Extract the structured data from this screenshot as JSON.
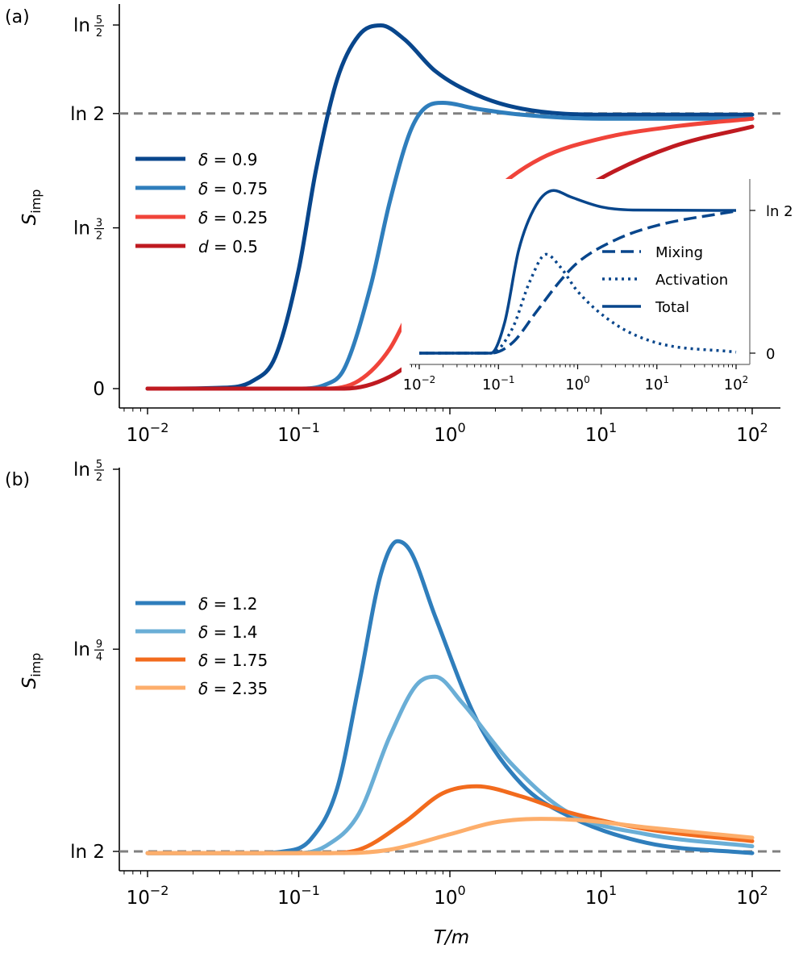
{
  "chart_data": [
    {
      "type": "line",
      "panel_label": "(a)",
      "xscale": "log",
      "xlim": [
        0.01,
        100
      ],
      "x_ticks": [
        {
          "base": "10",
          "exp": "−2",
          "value": 0.01
        },
        {
          "base": "10",
          "exp": "−1",
          "value": 0.1
        },
        {
          "base": "10",
          "exp": "0",
          "value": 1
        },
        {
          "base": "10",
          "exp": "1",
          "value": 10
        },
        {
          "base": "10",
          "exp": "2",
          "value": 100
        }
      ],
      "ylabel": {
        "main": "S",
        "sub": "imp"
      },
      "ylim": [
        0,
        0.916
      ],
      "y_ticks": [
        {
          "label": "0",
          "value": 0
        },
        {
          "label": "ln",
          "num": "3",
          "den": "2",
          "value": 0.405
        },
        {
          "label": "ln 2",
          "value": 0.693
        },
        {
          "label": "ln",
          "num": "5",
          "den": "2",
          "value": 0.916
        }
      ],
      "reference_line": {
        "value": 0.693,
        "style": "dashed",
        "color": "#808080"
      },
      "legend_position": "center-left",
      "series": [
        {
          "name_sym": "δ",
          "name_val": "= 0.9",
          "color": "#08468c",
          "points": [
            [
              0.01,
              0
            ],
            [
              0.03,
              0.002
            ],
            [
              0.05,
              0.02
            ],
            [
              0.07,
              0.08
            ],
            [
              0.1,
              0.3
            ],
            [
              0.13,
              0.55
            ],
            [
              0.18,
              0.78
            ],
            [
              0.25,
              0.89
            ],
            [
              0.35,
              0.915
            ],
            [
              0.5,
              0.88
            ],
            [
              0.8,
              0.8
            ],
            [
              1.5,
              0.74
            ],
            [
              3,
              0.705
            ],
            [
              10,
              0.69
            ],
            [
              100,
              0.69
            ]
          ]
        },
        {
          "name_sym": "δ",
          "name_val": "= 0.75",
          "color": "#2f7ebc",
          "points": [
            [
              0.01,
              0
            ],
            [
              0.1,
              0
            ],
            [
              0.15,
              0.01
            ],
            [
              0.2,
              0.05
            ],
            [
              0.3,
              0.26
            ],
            [
              0.4,
              0.47
            ],
            [
              0.55,
              0.65
            ],
            [
              0.7,
              0.71
            ],
            [
              0.9,
              0.72
            ],
            [
              1.5,
              0.705
            ],
            [
              3,
              0.69
            ],
            [
              10,
              0.68
            ],
            [
              100,
              0.68
            ]
          ]
        },
        {
          "name_sym": "δ",
          "name_val": "= 0.25",
          "color": "#f0443a",
          "points": [
            [
              0.01,
              0
            ],
            [
              0.15,
              0
            ],
            [
              0.25,
              0.02
            ],
            [
              0.4,
              0.1
            ],
            [
              0.6,
              0.23
            ],
            [
              1,
              0.37
            ],
            [
              2,
              0.5
            ],
            [
              4,
              0.58
            ],
            [
              10,
              0.63
            ],
            [
              30,
              0.66
            ],
            [
              100,
              0.68
            ]
          ]
        },
        {
          "name_sym": "d",
          "name_val": "= 0.5",
          "color": "#bf1a20",
          "points": [
            [
              0.01,
              0
            ],
            [
              0.2,
              0
            ],
            [
              0.4,
              0.03
            ],
            [
              0.7,
              0.1
            ],
            [
              1,
              0.17
            ],
            [
              2,
              0.31
            ],
            [
              4,
              0.43
            ],
            [
              10,
              0.53
            ],
            [
              30,
              0.61
            ],
            [
              100,
              0.66
            ]
          ]
        }
      ],
      "inset": {
        "type": "line",
        "xscale": "log",
        "xlim": [
          0.01,
          100
        ],
        "x_ticks": [
          {
            "base": "10",
            "exp": "−2",
            "value": 0.01
          },
          {
            "base": "10",
            "exp": "−1",
            "value": 0.1
          },
          {
            "base": "10",
            "exp": "0",
            "value": 1
          },
          {
            "base": "10",
            "exp": "1",
            "value": 10
          },
          {
            "base": "10",
            "exp": "2",
            "value": 100
          }
        ],
        "y_ticks": [
          {
            "label": "0",
            "value": 0
          },
          {
            "label": "ln 2",
            "value": 0.693
          }
        ],
        "legend_position": "right",
        "series": [
          {
            "name": "Mixing",
            "style": "dashed",
            "color": "#08468c",
            "points": [
              [
                0.01,
                0
              ],
              [
                0.08,
                0
              ],
              [
                0.15,
                0.05
              ],
              [
                0.3,
                0.2
              ],
              [
                0.6,
                0.35
              ],
              [
                1,
                0.44
              ],
              [
                3,
                0.55
              ],
              [
                10,
                0.62
              ],
              [
                100,
                0.69
              ]
            ]
          },
          {
            "name": "Activation",
            "style": "dotted",
            "color": "#08468c",
            "points": [
              [
                0.01,
                0
              ],
              [
                0.08,
                0
              ],
              [
                0.15,
                0.12
              ],
              [
                0.25,
                0.35
              ],
              [
                0.4,
                0.48
              ],
              [
                0.6,
                0.42
              ],
              [
                1,
                0.3
              ],
              [
                3,
                0.14
              ],
              [
                10,
                0.05
              ],
              [
                100,
                0.005
              ]
            ]
          },
          {
            "name": "Total",
            "style": "solid",
            "color": "#08468c",
            "points": [
              [
                0.01,
                0
              ],
              [
                0.08,
                0
              ],
              [
                0.12,
                0.15
              ],
              [
                0.18,
                0.5
              ],
              [
                0.3,
                0.72
              ],
              [
                0.5,
                0.79
              ],
              [
                0.8,
                0.76
              ],
              [
                2,
                0.71
              ],
              [
                5,
                0.695
              ],
              [
                100,
                0.693
              ]
            ]
          }
        ]
      }
    },
    {
      "type": "line",
      "panel_label": "(b)",
      "xscale": "log",
      "xlim": [
        0.01,
        100
      ],
      "x_ticks": [
        {
          "base": "10",
          "exp": "−2",
          "value": 0.01
        },
        {
          "base": "10",
          "exp": "−1",
          "value": 0.1
        },
        {
          "base": "10",
          "exp": "0",
          "value": 1
        },
        {
          "base": "10",
          "exp": "1",
          "value": 10
        },
        {
          "base": "10",
          "exp": "2",
          "value": 100
        }
      ],
      "xlabel": {
        "main": "T",
        "rest": "/m"
      },
      "ylabel": {
        "main": "S",
        "sub": "imp"
      },
      "ylim": [
        0.693,
        0.916
      ],
      "y_ticks": [
        {
          "label": "ln 2",
          "value": 0.693
        },
        {
          "label": "ln",
          "num": "9",
          "den": "4",
          "value": 0.811
        },
        {
          "label": "ln",
          "num": "5",
          "den": "2",
          "value": 0.916
        }
      ],
      "reference_line": {
        "value": 0.693,
        "style": "dashed",
        "color": "#808080"
      },
      "legend_position": "upper-left",
      "series": [
        {
          "name_sym": "δ",
          "name_val": "= 1.2",
          "color": "#2f7ebc",
          "points": [
            [
              0.01,
              0.692
            ],
            [
              0.05,
              0.692
            ],
            [
              0.08,
              0.693
            ],
            [
              0.12,
              0.7
            ],
            [
              0.18,
              0.73
            ],
            [
              0.25,
              0.79
            ],
            [
              0.35,
              0.855
            ],
            [
              0.45,
              0.874
            ],
            [
              0.55,
              0.868
            ],
            [
              0.8,
              0.83
            ],
            [
              1.5,
              0.77
            ],
            [
              3,
              0.732
            ],
            [
              6,
              0.714
            ],
            [
              20,
              0.698
            ],
            [
              100,
              0.692
            ]
          ]
        },
        {
          "name_sym": "δ",
          "name_val": "= 1.4",
          "color": "#6aaed6",
          "points": [
            [
              0.01,
              0.692
            ],
            [
              0.1,
              0.692
            ],
            [
              0.15,
              0.696
            ],
            [
              0.25,
              0.715
            ],
            [
              0.4,
              0.76
            ],
            [
              0.6,
              0.79
            ],
            [
              0.8,
              0.795
            ],
            [
              1.2,
              0.78
            ],
            [
              2.5,
              0.745
            ],
            [
              6,
              0.716
            ],
            [
              20,
              0.703
            ],
            [
              100,
              0.696
            ]
          ]
        },
        {
          "name_sym": "δ",
          "name_val": "= 1.75",
          "color": "#f26b1d",
          "points": [
            [
              0.01,
              0.692
            ],
            [
              0.15,
              0.692
            ],
            [
              0.25,
              0.694
            ],
            [
              0.5,
              0.71
            ],
            [
              0.9,
              0.727
            ],
            [
              1.5,
              0.731
            ],
            [
              3,
              0.725
            ],
            [
              6,
              0.716
            ],
            [
              20,
              0.706
            ],
            [
              100,
              0.699
            ]
          ]
        },
        {
          "name_sym": "δ",
          "name_val": "= 2.35",
          "color": "#fdae6b",
          "points": [
            [
              0.01,
              0.692
            ],
            [
              0.2,
              0.692
            ],
            [
              0.4,
              0.694
            ],
            [
              1,
              0.703
            ],
            [
              2,
              0.71
            ],
            [
              4,
              0.712
            ],
            [
              8,
              0.711
            ],
            [
              20,
              0.707
            ],
            [
              100,
              0.701
            ]
          ]
        }
      ]
    }
  ]
}
